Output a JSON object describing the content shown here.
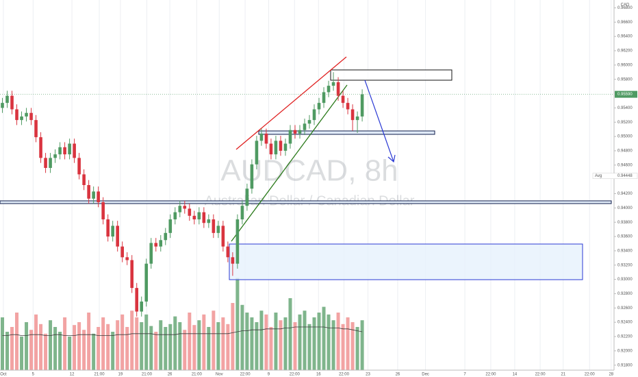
{
  "chart_data": {
    "type": "candlestick",
    "title": "AUDCAD, 8h",
    "subtitle": "Australian Dollar / Canadian Dollar",
    "currency": "CAD",
    "up_color": "#4f9a62",
    "down_color": "#d9343f",
    "volume_up_color": "#7fb58c",
    "volume_down_color": "#f2a3a3",
    "volume_ma_color": "#3a3a3a",
    "grid": true,
    "ylim": [
      0.9173,
      0.9691
    ],
    "yticks": [
      {
        "value": 0.918,
        "label": "0.91800"
      },
      {
        "value": 0.92,
        "label": "0.92000"
      },
      {
        "value": 0.922,
        "label": "0.92200"
      },
      {
        "value": 0.924,
        "label": "0.92400"
      },
      {
        "value": 0.926,
        "label": "0.92600"
      },
      {
        "value": 0.928,
        "label": "0.92800"
      },
      {
        "value": 0.93,
        "label": "0.93000"
      },
      {
        "value": 0.932,
        "label": "0.93200"
      },
      {
        "value": 0.934,
        "label": "0.93400"
      },
      {
        "value": 0.936,
        "label": "0.93600"
      },
      {
        "value": 0.938,
        "label": "0.93800"
      },
      {
        "value": 0.94,
        "label": "0.94000"
      },
      {
        "value": 0.942,
        "label": "0.94200"
      },
      {
        "value": 0.946,
        "label": "0.94600"
      },
      {
        "value": 0.948,
        "label": "0.94800"
      },
      {
        "value": 0.95,
        "label": "0.95000"
      },
      {
        "value": 0.952,
        "label": "0.95200"
      },
      {
        "value": 0.954,
        "label": "0.95400"
      },
      {
        "value": 0.958,
        "label": "0.95800"
      },
      {
        "value": 0.96,
        "label": "0.96000"
      },
      {
        "value": 0.962,
        "label": "0.96200"
      },
      {
        "value": 0.964,
        "label": "0.96400"
      },
      {
        "value": 0.966,
        "label": "0.96600"
      },
      {
        "value": 0.968,
        "label": "0.96800"
      }
    ],
    "last_price": {
      "value": 0.9559,
      "label": "0.95590"
    },
    "avg_price": {
      "value": 0.94448,
      "label": "0.94448"
    },
    "avg_text": "Avg",
    "xlim": [
      0,
      128
    ],
    "xticks": [
      {
        "value": 0.7,
        "label": "Oct"
      },
      {
        "value": 6.9,
        "label": "5"
      },
      {
        "value": 15,
        "label": "12"
      },
      {
        "value": 20.7,
        "label": "21:00"
      },
      {
        "value": 25.1,
        "label": "19"
      },
      {
        "value": 30.6,
        "label": "21:00"
      },
      {
        "value": 35.4,
        "label": "26"
      },
      {
        "value": 41,
        "label": "21:00"
      },
      {
        "value": 45.7,
        "label": "Nov"
      },
      {
        "value": 51.1,
        "label": "22:00"
      },
      {
        "value": 56,
        "label": "9"
      },
      {
        "value": 61.4,
        "label": "22:00"
      },
      {
        "value": 66.4,
        "label": "16"
      },
      {
        "value": 71.7,
        "label": "22:00"
      },
      {
        "value": 76.7,
        "label": "23"
      },
      {
        "value": 82.9,
        "label": "26"
      },
      {
        "value": 88.7,
        "label": "Dec"
      },
      {
        "value": 96.9,
        "label": "7"
      },
      {
        "value": 102.3,
        "label": "22:00"
      },
      {
        "value": 107.3,
        "label": "14"
      },
      {
        "value": 112.6,
        "label": "22:00"
      },
      {
        "value": 117.4,
        "label": "21"
      },
      {
        "value": 122.9,
        "label": "22:00"
      },
      {
        "value": 127.4,
        "label": "28"
      }
    ],
    "ohlc": {
      "open": [
        0.954,
        0.9547,
        0.9557,
        0.9538,
        0.9523,
        0.9528,
        0.9533,
        0.9523,
        0.9499,
        0.947,
        0.9456,
        0.947,
        0.9475,
        0.9485,
        0.9475,
        0.949,
        0.947,
        0.9447,
        0.9432,
        0.9413,
        0.9423,
        0.9408,
        0.9384,
        0.936,
        0.9375,
        0.9346,
        0.9331,
        0.9327,
        0.9288,
        0.9255,
        0.9269,
        0.9322,
        0.9351,
        0.9346,
        0.9355,
        0.9365,
        0.9384,
        0.9394,
        0.9403,
        0.9399,
        0.9389,
        0.9384,
        0.9394,
        0.9379,
        0.9384,
        0.9365,
        0.9375,
        0.9346,
        0.9331,
        0.9322,
        0.9384,
        0.9403,
        0.9427,
        0.9461,
        0.9494,
        0.9504,
        0.949,
        0.9475,
        0.9494,
        0.948,
        0.949,
        0.9509,
        0.9504,
        0.9509,
        0.9518,
        0.9523,
        0.9538,
        0.9547,
        0.9562,
        0.9571,
        0.9576,
        0.9557,
        0.9547,
        0.9538,
        0.9523,
        0.9528
      ],
      "high": [
        0.9554,
        0.9564,
        0.9564,
        0.9545,
        0.9535,
        0.954,
        0.954,
        0.953,
        0.9506,
        0.9477,
        0.9477,
        0.9482,
        0.9492,
        0.9492,
        0.9497,
        0.9497,
        0.9477,
        0.9454,
        0.9439,
        0.943,
        0.943,
        0.9415,
        0.9391,
        0.9382,
        0.9382,
        0.9353,
        0.9338,
        0.9334,
        0.9295,
        0.9276,
        0.9329,
        0.9358,
        0.9358,
        0.9362,
        0.9372,
        0.9391,
        0.9401,
        0.941,
        0.941,
        0.9406,
        0.9396,
        0.9401,
        0.9401,
        0.9391,
        0.9391,
        0.9382,
        0.9382,
        0.9353,
        0.9338,
        0.9391,
        0.941,
        0.9434,
        0.9468,
        0.9501,
        0.9511,
        0.9511,
        0.9497,
        0.9501,
        0.9501,
        0.9497,
        0.9516,
        0.9516,
        0.9516,
        0.9525,
        0.953,
        0.9545,
        0.9554,
        0.9569,
        0.9578,
        0.959,
        0.9583,
        0.9564,
        0.9554,
        0.9545,
        0.9535,
        0.9566
      ],
      "low": [
        0.9533,
        0.954,
        0.9531,
        0.9516,
        0.9516,
        0.9521,
        0.9516,
        0.9492,
        0.9463,
        0.9449,
        0.9449,
        0.9463,
        0.9468,
        0.9468,
        0.9468,
        0.9463,
        0.944,
        0.9425,
        0.9406,
        0.9406,
        0.9401,
        0.9377,
        0.9353,
        0.9353,
        0.9339,
        0.9324,
        0.932,
        0.9281,
        0.9248,
        0.9248,
        0.9262,
        0.9315,
        0.9339,
        0.9339,
        0.9348,
        0.9358,
        0.9377,
        0.9387,
        0.9392,
        0.9382,
        0.9377,
        0.9377,
        0.9372,
        0.9372,
        0.9358,
        0.9358,
        0.9339,
        0.9324,
        0.9305,
        0.9315,
        0.9377,
        0.9396,
        0.942,
        0.9454,
        0.9487,
        0.9483,
        0.9468,
        0.9468,
        0.9473,
        0.9473,
        0.9483,
        0.9497,
        0.9497,
        0.9502,
        0.9511,
        0.9516,
        0.9531,
        0.954,
        0.9555,
        0.9564,
        0.955,
        0.954,
        0.9531,
        0.9508,
        0.9505,
        0.9521
      ],
      "close": [
        0.9547,
        0.9557,
        0.9538,
        0.9523,
        0.9528,
        0.9533,
        0.9523,
        0.9499,
        0.947,
        0.9456,
        0.947,
        0.9475,
        0.9485,
        0.9475,
        0.949,
        0.947,
        0.9447,
        0.9432,
        0.9413,
        0.9423,
        0.9408,
        0.9384,
        0.936,
        0.9375,
        0.9346,
        0.9331,
        0.9327,
        0.9288,
        0.9255,
        0.9269,
        0.9322,
        0.9351,
        0.9346,
        0.9355,
        0.9365,
        0.9384,
        0.9394,
        0.9403,
        0.9399,
        0.9389,
        0.9384,
        0.9394,
        0.9379,
        0.9384,
        0.9365,
        0.9375,
        0.9346,
        0.9331,
        0.9322,
        0.9384,
        0.9403,
        0.9427,
        0.9461,
        0.9494,
        0.9504,
        0.949,
        0.9475,
        0.9494,
        0.948,
        0.949,
        0.9509,
        0.9504,
        0.9509,
        0.9518,
        0.9523,
        0.9538,
        0.9547,
        0.9562,
        0.9571,
        0.9576,
        0.9557,
        0.9547,
        0.9538,
        0.9523,
        0.9528,
        0.9559
      ]
    },
    "volume": {
      "lim": [
        0,
        100
      ],
      "values": [
        55,
        40,
        45,
        60,
        35,
        50,
        42,
        58,
        48,
        38,
        52,
        45,
        40,
        55,
        35,
        47,
        50,
        42,
        60,
        38,
        45,
        55,
        48,
        40,
        52,
        58,
        45,
        62,
        55,
        50,
        58,
        46,
        40,
        52,
        45,
        48,
        56,
        50,
        42,
        60,
        47,
        52,
        58,
        45,
        62,
        50,
        55,
        48,
        70,
        96,
        68,
        60,
        55,
        50,
        62,
        58,
        45,
        60,
        52,
        55,
        75,
        50,
        58,
        62,
        48,
        55,
        60,
        66,
        58,
        52,
        60,
        48,
        55,
        50,
        45,
        52
      ],
      "ma": [
        36,
        36,
        37,
        37,
        36,
        36,
        37,
        37,
        37,
        36,
        36,
        37,
        37,
        36,
        36,
        36,
        37,
        37,
        37,
        37,
        36,
        36,
        36,
        36,
        37,
        37,
        37,
        38,
        38,
        38,
        38,
        38,
        37,
        37,
        37,
        37,
        37,
        38,
        38,
        38,
        38,
        38,
        38,
        38,
        38,
        38,
        38,
        38,
        39,
        40,
        41,
        41,
        42,
        42,
        42,
        43,
        43,
        43,
        43,
        44,
        44,
        45,
        45,
        45,
        45,
        45,
        45,
        45,
        44,
        44,
        44,
        43,
        43,
        42,
        41,
        40
      ]
    }
  }
}
